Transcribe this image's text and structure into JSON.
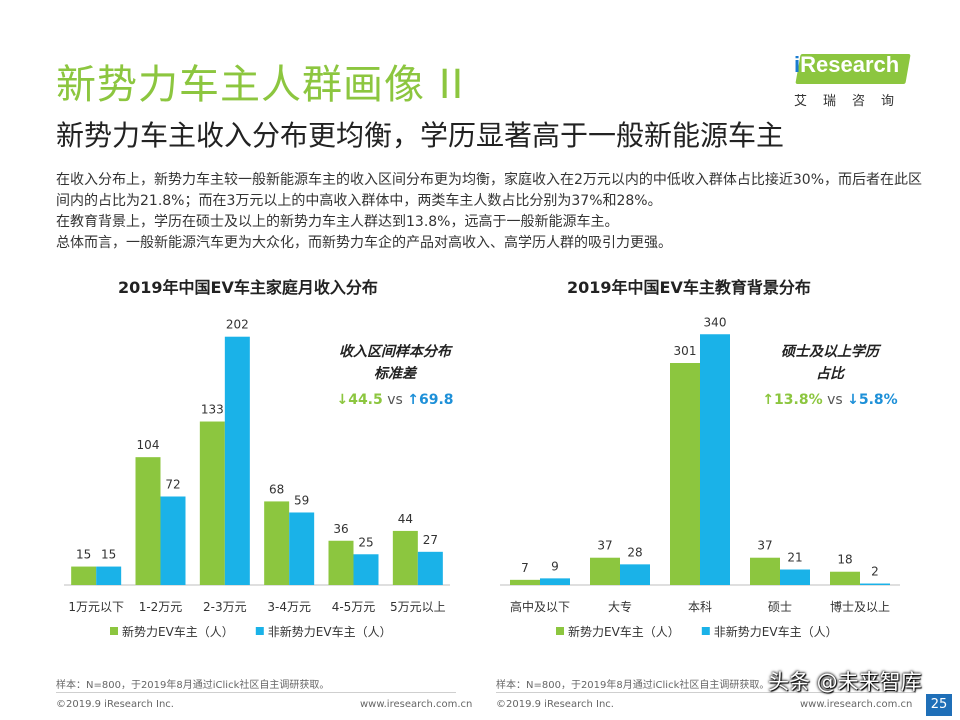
{
  "header": {
    "title": "新势力车主人群画像 II",
    "subtitle": "新势力车主收入分布更均衡，学历显著高于一般新能源车主"
  },
  "logo": {
    "i": "i",
    "research": "Research",
    "cn": "艾瑞咨询"
  },
  "body": [
    "在收入分布上，新势力车主较一般新能源车主的收入区间分布更为均衡，家庭收入在2万元以内的中低收入群体占比接近30%，而后者在此区间内的占比为21.8%；而在3万元以上的中高收入群体中，两类车主人数占比分别为37%和28%。",
    "在教育背景上，学历在硕士及以上的新势力车主人群达到13.8%，远高于一般新能源车主。",
    "总体而言，一般新能源汽车更为大众化，而新势力车企的产品对高收入、高学历人群的吸引力更强。"
  ],
  "colors": {
    "green": "#8cc63f",
    "blue": "#1ab2e8",
    "accent_blue": "#1e90d8",
    "title_green": "#8cc63f"
  },
  "chart_data": [
    {
      "type": "bar",
      "title": "2019年中国EV车主家庭月收入分布",
      "categories": [
        "1万元以下",
        "1-2万元",
        "2-3万元",
        "3-4万元",
        "4-5万元",
        "5万元以上"
      ],
      "series": [
        {
          "name": "新势力EV车主（人）",
          "values": [
            15,
            104,
            133,
            68,
            36,
            44
          ]
        },
        {
          "name": "非新势力EV车主（人）",
          "values": [
            15,
            72,
            202,
            59,
            25,
            27
          ]
        }
      ],
      "ylim": [
        0,
        240
      ],
      "grid": false,
      "legend_position": "bottom",
      "annotation": {
        "line1": "收入区间样本分布",
        "line2": "标准差",
        "v1": "↓44.5",
        "vs": "vs",
        "v2": "↑69.8"
      }
    },
    {
      "type": "bar",
      "title": "2019年中国EV车主教育背景分布",
      "categories": [
        "高中及以下",
        "大专",
        "本科",
        "硕士",
        "博士及以上"
      ],
      "series": [
        {
          "name": "新势力EV车主（人）",
          "values": [
            7,
            37,
            301,
            37,
            18
          ]
        },
        {
          "name": "非新势力EV车主（人）",
          "values": [
            9,
            28,
            340,
            21,
            2
          ]
        }
      ],
      "ylim": [
        0,
        400
      ],
      "grid": false,
      "legend_position": "bottom",
      "annotation": {
        "line1": "硕士及以上学历",
        "line2": "占比",
        "v1": "↑13.8%",
        "vs": "vs",
        "v2": "↓5.8%"
      }
    }
  ],
  "footer": {
    "note": "样本：N=800，于2019年8月通过iClick社区自主调研获取。",
    "copyright": "©2019.9  iResearch Inc.",
    "website": "www.iresearch.com.cn",
    "page": "25"
  },
  "watermark": "头条 @未来智库"
}
